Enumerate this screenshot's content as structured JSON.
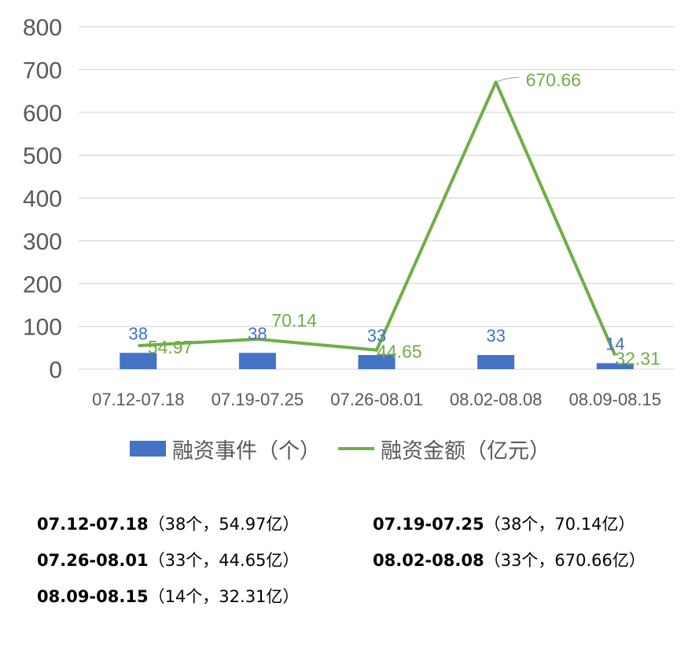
{
  "chart_data": {
    "type": "bar+line",
    "categories": [
      "07.12-07.18",
      "07.19-07.25",
      "07.26-08.01",
      "08.02-08.08",
      "08.09-08.15"
    ],
    "series": [
      {
        "name": "融资事件（个）",
        "type": "bar",
        "values": [
          38,
          38,
          33,
          33,
          14
        ],
        "color": "#4472c4",
        "labels": [
          "38",
          "38",
          "33",
          "33",
          "14"
        ]
      },
      {
        "name": "融资金额（亿元）",
        "type": "line",
        "values": [
          54.97,
          70.14,
          44.65,
          670.66,
          32.31
        ],
        "color": "#70ad47",
        "labels": [
          "54.97",
          "70.14",
          "44.65",
          "670.66",
          "32.31"
        ]
      }
    ],
    "ylim": [
      0,
      800
    ],
    "yticks": [
      "0",
      "100",
      "200",
      "300",
      "400",
      "500",
      "600",
      "700",
      "800"
    ],
    "grid": true,
    "legend_position": "bottom"
  },
  "notes": [
    {
      "period": "07.12-07.18",
      "detail": "（38个，54.97亿）"
    },
    {
      "period": "07.19-07.25",
      "detail": "（38个，70.14亿）"
    },
    {
      "period": "07.26-08.01",
      "detail": "（33个，44.65亿）"
    },
    {
      "period": "08.02-08.08",
      "detail": "（33个，670.66亿）"
    },
    {
      "period": "08.09-08.15",
      "detail": "（14个，32.31亿）"
    }
  ]
}
